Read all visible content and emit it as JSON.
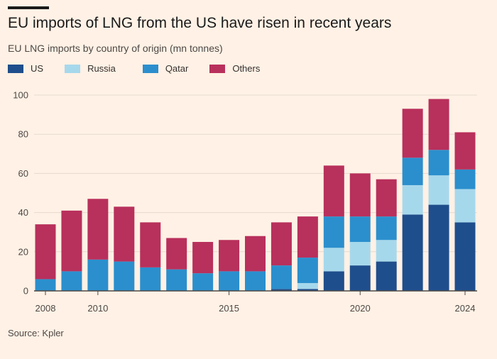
{
  "title": "EU imports of LNG from the US have risen in recent years",
  "subtitle": "EU LNG imports by country of origin (mn tonnes)",
  "source": "Source: Kpler",
  "colors": {
    "background": "#fff1e5",
    "US": "#1f4e8c",
    "Russia": "#a6d8ec",
    "Qatar": "#2b8fcd",
    "Others": "#b8305c"
  },
  "chart_data": {
    "type": "bar",
    "stacked": true,
    "categories": [
      "2008",
      "2009",
      "2010",
      "2011",
      "2012",
      "2013",
      "2014",
      "2015",
      "2016",
      "2017",
      "2018",
      "2019",
      "2020",
      "2021",
      "2022",
      "2023",
      "2024"
    ],
    "series": [
      {
        "name": "US",
        "values": [
          0,
          0,
          0,
          0,
          0,
          0,
          0,
          0,
          0,
          1,
          1,
          10,
          13,
          15,
          39,
          44,
          35
        ]
      },
      {
        "name": "Russia",
        "values": [
          0,
          0,
          0,
          0,
          0,
          0,
          0,
          0,
          0,
          0,
          3,
          12,
          12,
          11,
          15,
          15,
          17
        ]
      },
      {
        "name": "Qatar",
        "values": [
          6,
          10,
          16,
          15,
          12,
          11,
          9,
          10,
          10,
          12,
          13,
          16,
          13,
          12,
          14,
          13,
          10
        ]
      },
      {
        "name": "Others",
        "values": [
          28,
          31,
          31,
          28,
          23,
          16,
          16,
          16,
          18,
          22,
          21,
          26,
          22,
          19,
          25,
          26,
          19
        ]
      }
    ],
    "yticks": [
      0,
      20,
      40,
      60,
      80,
      100
    ],
    "xtick_labels": [
      "2008",
      "2010",
      "2015",
      "2020",
      "2024"
    ],
    "ylim": [
      0,
      100
    ],
    "legend": [
      "US",
      "Russia",
      "Qatar",
      "Others"
    ],
    "legend_position": "top-left",
    "grid": true
  }
}
